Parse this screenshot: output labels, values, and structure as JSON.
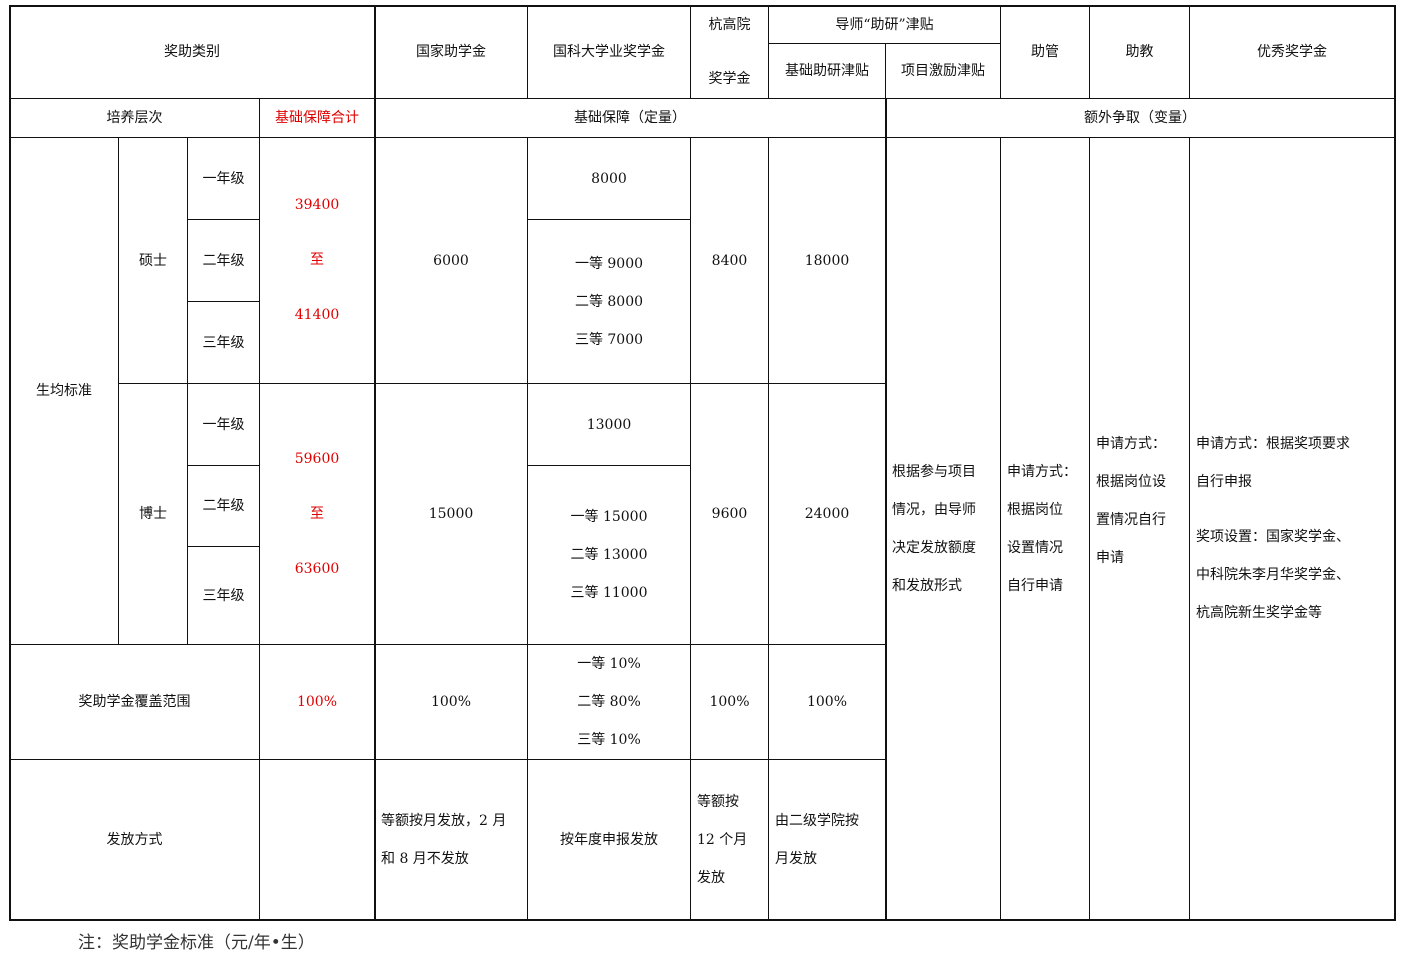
{
  "header": {
    "category": "奖助类别",
    "national_grant": "国家助学金",
    "ucas_scholarship": "国科大学业奖学金",
    "hias_scholarship": [
      "杭高院",
      "奖学金"
    ],
    "supervisor_allowance": "导师“助研”津贴",
    "basic_allowance": "基础助研津贴",
    "project_allowance": "项目激励津贴",
    "assistant_mgmt": "助管",
    "teaching_assistant": "助教",
    "excellence_scholarship": "优秀奖学金",
    "level": "培养层次",
    "basic_total": "基础保障合计",
    "basic_fixed": "基础保障（定量）",
    "extra_variable": "额外争取（变量）"
  },
  "body": {
    "per_student": "生均标准",
    "master": {
      "label": "硕士",
      "grades": [
        "一年级",
        "二年级",
        "三年级"
      ],
      "total": [
        "39400",
        "至",
        "41400"
      ],
      "national": "6000",
      "ucas_first_year": "8000",
      "ucas_tiers": [
        "一等 9000",
        "二等 8000",
        "三等 7000"
      ],
      "hias": "8400",
      "basic_allowance": "18000"
    },
    "phd": {
      "label": "博士",
      "grades": [
        "一年级",
        "二年级",
        "三年级"
      ],
      "total": [
        "59600",
        "至",
        "63600"
      ],
      "national": "15000",
      "ucas_first_year": "13000",
      "ucas_tiers": [
        "一等 15000",
        "二等 13000",
        "三等 11000"
      ],
      "hias": "9600",
      "basic_allowance": "24000"
    },
    "project_allowance_desc": [
      "根据参与项目",
      "情况，由导师",
      "决定发放额度",
      "和发放形式"
    ],
    "assistant_mgmt_desc": [
      "申请方式：",
      "根据岗位",
      "设置情况",
      "自行申请"
    ],
    "teaching_assistant_desc": [
      "申请方式：",
      "根据岗位设",
      "置情况自行",
      "申请"
    ],
    "excellence_desc": [
      "申请方式：根据奖项要求",
      "自行申报",
      "",
      "奖项设置：国家奖学金、",
      "中科院朱李月华奖学金、",
      "杭高院新生奖学金等"
    ],
    "coverage": {
      "label": "奖助学金覆盖范围",
      "total": "100%",
      "national": "100%",
      "ucas": [
        "一等 10%",
        "二等 80%",
        "三等 10%"
      ],
      "hias": "100%",
      "basic_allowance": "100%"
    },
    "payment": {
      "label": "发放方式",
      "national": [
        "等额按月发放，2 月",
        "和 8 月不发放"
      ],
      "ucas": "按年度申报发放",
      "hias": [
        "等额按",
        "12 个月",
        "发放"
      ],
      "basic_allowance": [
        "由二级学院按",
        "月发放"
      ]
    }
  },
  "note": "注：奖助学金标准（元/年•生）",
  "colors": {
    "highlight": "#e00000",
    "border": "#111111"
  }
}
